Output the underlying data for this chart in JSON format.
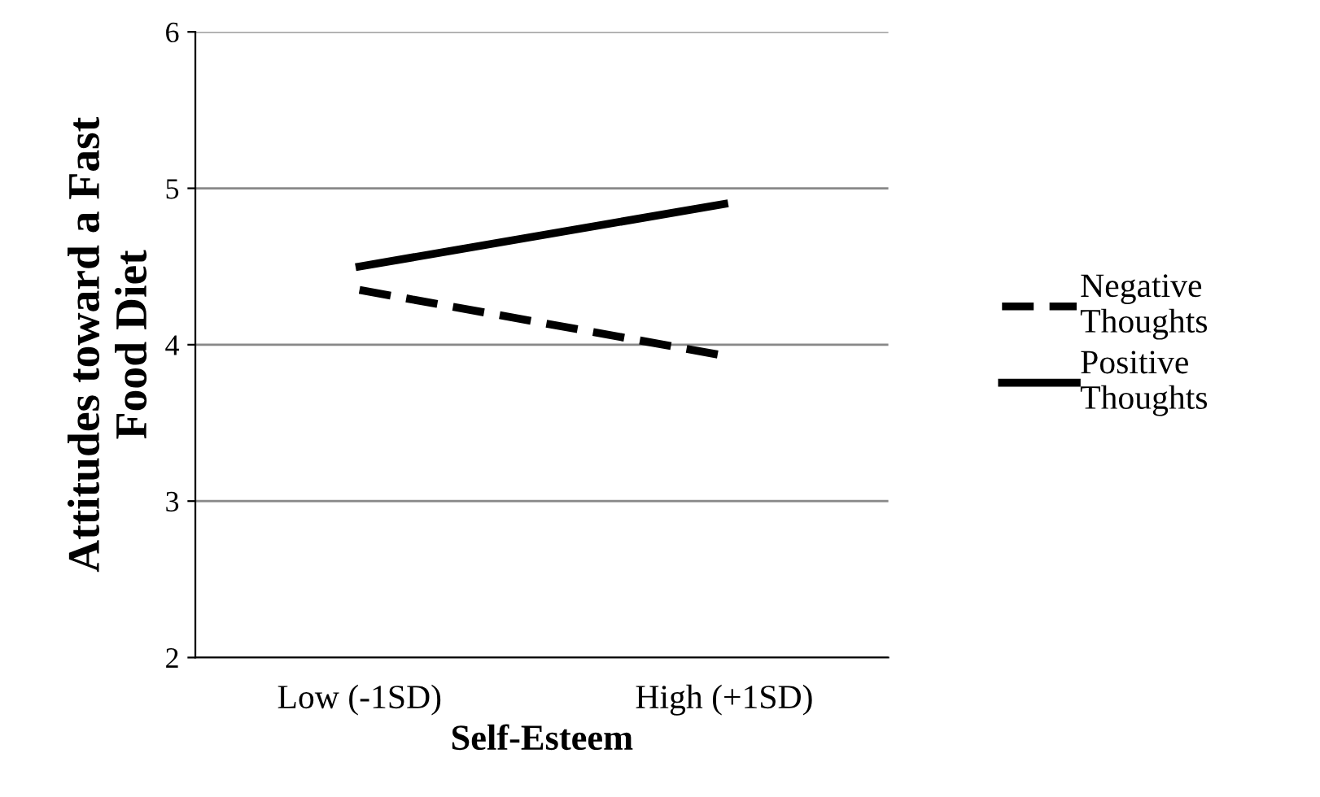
{
  "chart_data": {
    "type": "line",
    "xlabel": "Self-Esteem",
    "ylabel": "Attitudes toward a Fast\nFood Diet",
    "categories": [
      "Low (-1SD)",
      "High (+1SD)"
    ],
    "series": [
      {
        "name": "Negative\nThoughts",
        "color": "#000000",
        "values": [
          4.35,
          3.93
        ],
        "line_style": "dashed"
      },
      {
        "name": "Positive\nThoughts",
        "color": "#000000",
        "values": [
          4.5,
          4.9
        ],
        "line_style": "solid"
      }
    ],
    "ylim": [
      2,
      6
    ],
    "yticks": [
      2,
      3,
      4,
      5,
      6
    ],
    "grid": "y",
    "legend": "right",
    "marker": "none"
  }
}
